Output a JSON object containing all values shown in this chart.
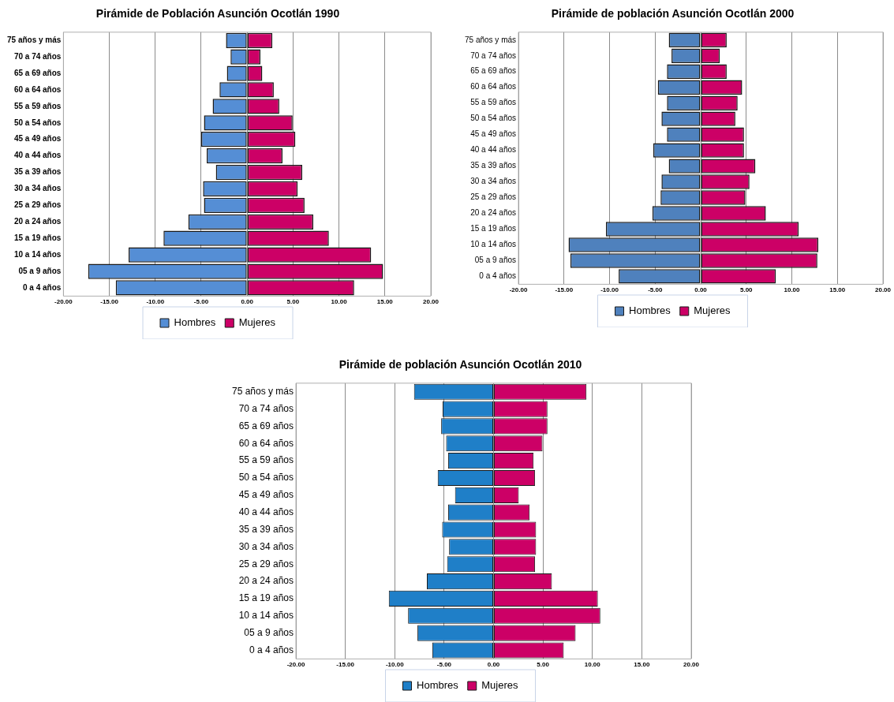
{
  "chart_data": [
    {
      "type": "bar",
      "orientation": "horizontal",
      "stacked": true,
      "title": "Pirámide de Población Asunción Ocotlán 1990",
      "categories": [
        "75 años y más",
        "70 a 74 años",
        "65 a 69 años",
        "60 a 64 años",
        "55 a 59 años",
        "50 a 54 años",
        "45 a 49 años",
        "40 a 44 años",
        "35 a 39 años",
        "30 a 34 años",
        "25 a 29 años",
        "20 a 24 años",
        "15 a 19 años",
        "10 a 14 años",
        "05 a 9 años",
        "0 a 4 años"
      ],
      "series": [
        {
          "name": "Hombres",
          "color": "#558ed5",
          "values": [
            -2.3,
            -1.8,
            -2.2,
            -3.0,
            -3.75,
            -4.7,
            -5.0,
            -4.4,
            -3.4,
            -4.8,
            -4.7,
            -6.4,
            -9.1,
            -12.9,
            -17.3,
            -14.3
          ]
        },
        {
          "name": "Mujeres",
          "color": "#cc0066",
          "values": [
            2.75,
            1.45,
            1.65,
            2.9,
            3.5,
            4.95,
            5.25,
            3.85,
            6.0,
            5.5,
            6.25,
            7.2,
            8.9,
            13.5,
            14.8,
            11.65
          ]
        }
      ],
      "xlim": [
        -20,
        20
      ],
      "xticks": [
        {
          "value": -20,
          "label": "-20.00"
        },
        {
          "value": -15,
          "label": "-15.00"
        },
        {
          "value": -10,
          "label": "-10.00"
        },
        {
          "value": -5,
          "label": "-5.00"
        },
        {
          "value": 0,
          "label": "0.00"
        },
        {
          "value": 5,
          "label": "5.00"
        },
        {
          "value": 10,
          "label": "10.00"
        },
        {
          "value": 15,
          "label": "15.00"
        },
        {
          "value": 20,
          "label": "20.00"
        }
      ],
      "grid": "x",
      "legend": "bottom"
    },
    {
      "type": "bar",
      "orientation": "horizontal",
      "stacked": true,
      "title": "Pirámide de población Asunción Ocotlán 2000",
      "categories": [
        "75 años y más",
        "70 a 74 años",
        "65 a 69 años",
        "60 a 64 años",
        "55 a 59 años",
        "50 a 54 años",
        "45 a 49 años",
        "40 a 44 años",
        "35 a 39 años",
        "30 a 34 años",
        "25 a 29 años",
        "20 a 24 años",
        "15 a 19 años",
        "10 a 14 años",
        "05 a 9 años",
        "0 a 4 años"
      ],
      "series": [
        {
          "name": "Hombres",
          "color": "#4f81bd",
          "values": [
            -3.5,
            -3.2,
            -3.7,
            -4.7,
            -3.7,
            -4.3,
            -3.7,
            -5.2,
            -3.5,
            -4.3,
            -4.4,
            -5.3,
            -10.4,
            -14.5,
            -14.3,
            -9.0
          ]
        },
        {
          "name": "Mujeres",
          "color": "#cc0066",
          "values": [
            2.85,
            2.1,
            2.85,
            4.55,
            4.05,
            3.8,
            4.75,
            4.75,
            6.0,
            5.35,
            4.9,
            7.15,
            10.75,
            12.9,
            12.8,
            8.25
          ]
        }
      ],
      "xlim": [
        -20,
        20
      ],
      "xticks": [
        {
          "value": -20,
          "label": "-20.00"
        },
        {
          "value": -15,
          "label": "-15.00"
        },
        {
          "value": -10,
          "label": "-10.00"
        },
        {
          "value": -5,
          "label": "-5.00"
        },
        {
          "value": 0,
          "label": "0.00"
        },
        {
          "value": 5,
          "label": "5.00"
        },
        {
          "value": 10,
          "label": "10.00"
        },
        {
          "value": 15,
          "label": "15.00"
        },
        {
          "value": 20,
          "label": "20.00"
        }
      ],
      "grid": "x",
      "legend": "bottom"
    },
    {
      "type": "bar",
      "orientation": "horizontal",
      "stacked": true,
      "title": "Pirámide de población Asunción Ocotlán 2010",
      "categories": [
        "75 años y más",
        "70 a 74 años",
        "65 a 69 años",
        "60 a 64 años",
        "55 a 59 años",
        "50 a 54 años",
        "45 a 49 años",
        "40 a 44 años",
        "35 a 39 años",
        "30 a 34 años",
        "25 a 29 años",
        "20 a 24 años",
        "15 a 19 años",
        "10 a 14 años",
        "05 a 9 años",
        "0 a 4 años"
      ],
      "series": [
        {
          "name": "Hombres",
          "color": "#1f7fc8",
          "values": [
            -8.05,
            -5.15,
            -5.3,
            -4.8,
            -4.6,
            -5.65,
            -3.9,
            -4.6,
            -5.2,
            -4.5,
            -4.7,
            -6.75,
            -10.6,
            -8.65,
            -7.7,
            -6.2
          ]
        },
        {
          "name": "Mujeres",
          "color": "#cc0066",
          "values": [
            9.4,
            5.45,
            5.45,
            4.95,
            4.05,
            4.2,
            2.55,
            3.65,
            4.3,
            4.3,
            4.2,
            5.9,
            10.55,
            10.8,
            8.3,
            7.1
          ]
        }
      ],
      "xlim": [
        -20,
        20
      ],
      "xticks": [
        {
          "value": -20,
          "label": "-20.00"
        },
        {
          "value": -15,
          "label": "-15.00"
        },
        {
          "value": -10,
          "label": "-10.00"
        },
        {
          "value": -5,
          "label": "-5.00"
        },
        {
          "value": 0,
          "label": "0.00"
        },
        {
          "value": 5,
          "label": "5.00"
        },
        {
          "value": 10,
          "label": "10.00"
        },
        {
          "value": 15,
          "label": "15.00"
        },
        {
          "value": 20,
          "label": "20.00"
        }
      ],
      "grid": "x",
      "legend": "bottom"
    }
  ]
}
